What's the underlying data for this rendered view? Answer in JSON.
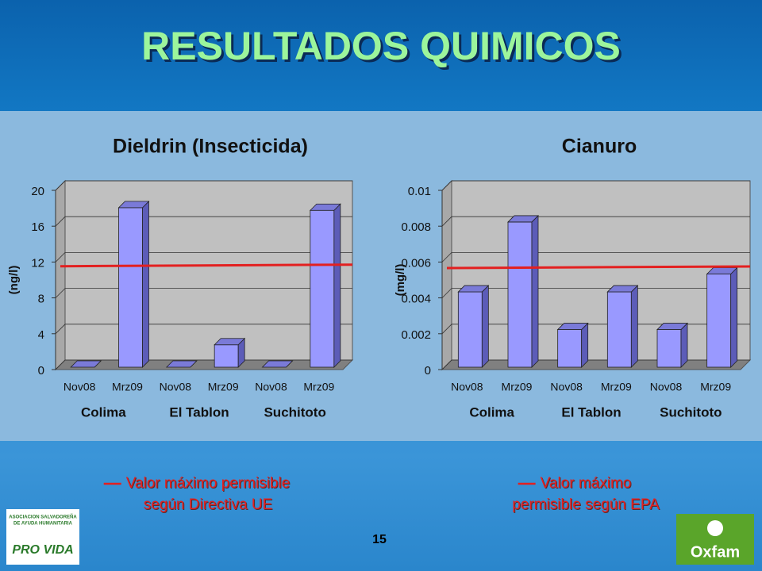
{
  "slide": {
    "title": "RESULTADOS QUIMICOS",
    "page_number": "15",
    "logo_left": {
      "lines": [
        "ASOCIACION SALVADOREÑA",
        "DE AYUDA HUMANITARIA"
      ],
      "name": "PRO VIDA"
    },
    "logo_right": "Oxfam"
  },
  "chart_data": [
    {
      "type": "bar",
      "title": "Dieldrin (Insecticida)",
      "y_label": "(ng/l)",
      "categories": [
        "Nov08",
        "Mrz09",
        "Nov08",
        "Mrz09",
        "Nov08",
        "Mrz09"
      ],
      "groups": [
        "Colima",
        "El Tablon",
        "Suchitoto"
      ],
      "values": [
        0,
        17.8,
        0,
        2.5,
        0,
        17.5
      ],
      "color": "#9999ff",
      "ylim": [
        0,
        20
      ],
      "yticks": [
        0,
        4,
        8,
        12,
        16,
        20
      ],
      "grid": true,
      "threshold": {
        "value": 11,
        "color": "#e32020",
        "label": [
          "Valor máximo permisible",
          "según Directiva UE"
        ]
      }
    },
    {
      "type": "bar",
      "title": "Cianuro",
      "y_label": "(mg/l)",
      "categories": [
        "Nov08",
        "Mrz09",
        "Nov08",
        "Mrz09",
        "Nov08",
        "Mrz09"
      ],
      "groups": [
        "Colima",
        "El Tablon",
        "Suchitoto"
      ],
      "values": [
        0.0042,
        0.0081,
        0.0021,
        0.0042,
        0.0021,
        0.0052
      ],
      "color": "#9999ff",
      "ylim": [
        0,
        0.01
      ],
      "yticks": [
        0,
        0.002,
        0.004,
        0.006,
        0.008,
        0.01
      ],
      "grid": true,
      "threshold": {
        "value": 0.0054,
        "color": "#e32020",
        "label": [
          "Valor máximo",
          "permisible según EPA"
        ]
      }
    }
  ]
}
